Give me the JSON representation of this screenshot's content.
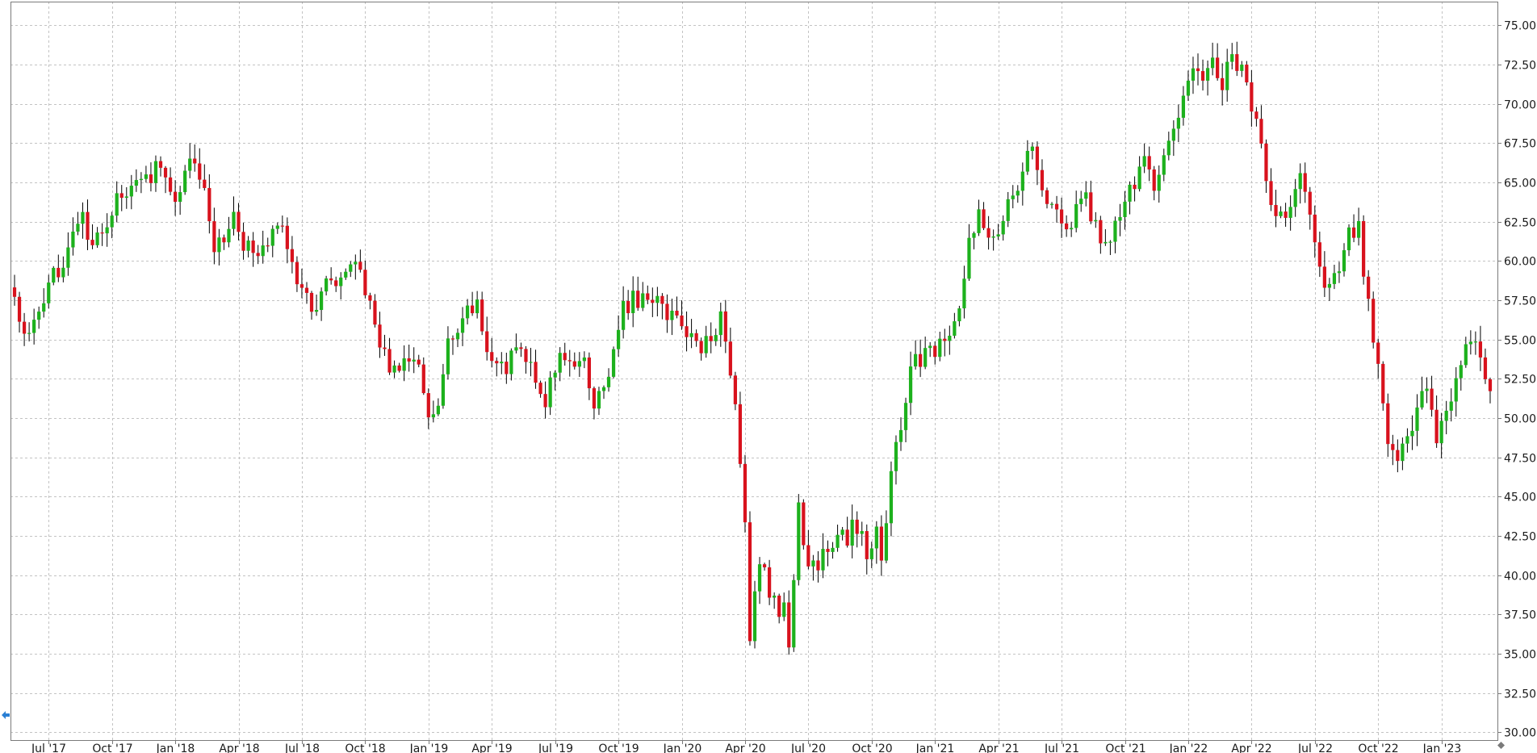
{
  "chart_data": {
    "type": "candlestick",
    "timeframe": "weekly",
    "colors": {
      "up": "#1db11d",
      "down": "#d8121d",
      "grid": "#c3c3c3",
      "wick": "#000000",
      "axis": "#7a7a7a"
    },
    "y_range": [
      29.5,
      76.5
    ],
    "y_ticks": [
      "30.00",
      "32.50",
      "35.00",
      "37.50",
      "40.00",
      "42.50",
      "45.00",
      "47.50",
      "50.00",
      "52.50",
      "55.00",
      "57.50",
      "60.00",
      "62.50",
      "65.00",
      "67.50",
      "70.00",
      "72.50",
      "75.00"
    ],
    "x_ticks": [
      {
        "label": "Jul '17",
        "week": 7
      },
      {
        "label": "Oct '17",
        "week": 20
      },
      {
        "label": "Jan '18",
        "week": 33
      },
      {
        "label": "Apr '18",
        "week": 46
      },
      {
        "label": "Jul '18",
        "week": 59
      },
      {
        "label": "Oct '18",
        "week": 72
      },
      {
        "label": "Jan '19",
        "week": 85
      },
      {
        "label": "Apr '19",
        "week": 98
      },
      {
        "label": "Jul '19",
        "week": 111
      },
      {
        "label": "Oct '19",
        "week": 124
      },
      {
        "label": "Jan '20",
        "week": 137
      },
      {
        "label": "Apr '20",
        "week": 150
      },
      {
        "label": "Jul '20",
        "week": 163
      },
      {
        "label": "Oct '20",
        "week": 176
      },
      {
        "label": "Jan '21",
        "week": 189
      },
      {
        "label": "Apr '21",
        "week": 202
      },
      {
        "label": "Jul '21",
        "week": 215
      },
      {
        "label": "Oct '21",
        "week": 228
      },
      {
        "label": "Jan '22",
        "week": 241
      },
      {
        "label": "Apr '22",
        "week": 254
      },
      {
        "label": "Jul '22",
        "week": 267
      },
      {
        "label": "Oct '22",
        "week": 280
      },
      {
        "label": "Jan '23",
        "week": 293
      }
    ],
    "close_path": [
      [
        0,
        57.5
      ],
      [
        2,
        55.5
      ],
      [
        4,
        55.8
      ],
      [
        6,
        57.0
      ],
      [
        8,
        59.0
      ],
      [
        10,
        60.2
      ],
      [
        12,
        62.0
      ],
      [
        14,
        62.5
      ],
      [
        16,
        60.5
      ],
      [
        18,
        62.0
      ],
      [
        20,
        63.0
      ],
      [
        22,
        64.5
      ],
      [
        24,
        64.5
      ],
      [
        26,
        64.8
      ],
      [
        28,
        65.5
      ],
      [
        30,
        66.5
      ],
      [
        32,
        64.0
      ],
      [
        34,
        64.5
      ],
      [
        35,
        66.2
      ],
      [
        37,
        66.3
      ],
      [
        39,
        65.2
      ],
      [
        41,
        61.0
      ],
      [
        43,
        61.5
      ],
      [
        45,
        63.0
      ],
      [
        47,
        61.0
      ],
      [
        49,
        61.0
      ],
      [
        51,
        60.5
      ],
      [
        53,
        61.5
      ],
      [
        55,
        62.5
      ],
      [
        57,
        59.5
      ],
      [
        59,
        58.0
      ],
      [
        61,
        57.0
      ],
      [
        63,
        58.0
      ],
      [
        65,
        59.0
      ],
      [
        67,
        58.5
      ],
      [
        69,
        60.2
      ],
      [
        71,
        59.8
      ],
      [
        73,
        57.0
      ],
      [
        75,
        54.5
      ],
      [
        77,
        53.5
      ],
      [
        79,
        53.5
      ],
      [
        81,
        53.0
      ],
      [
        83,
        53.8
      ],
      [
        85,
        50.0
      ],
      [
        87,
        50.5
      ],
      [
        89,
        54.5
      ],
      [
        91,
        55.0
      ],
      [
        93,
        56.8
      ],
      [
        95,
        57.0
      ],
      [
        97,
        54.5
      ],
      [
        99,
        53.5
      ],
      [
        101,
        53.0
      ],
      [
        103,
        54.5
      ],
      [
        105,
        54.0
      ],
      [
        107,
        52.8
      ],
      [
        109,
        51.2
      ],
      [
        111,
        53.0
      ],
      [
        113,
        54.2
      ],
      [
        115,
        53.5
      ],
      [
        117,
        53.2
      ],
      [
        119,
        51.0
      ],
      [
        121,
        52.0
      ],
      [
        123,
        54.0
      ],
      [
        125,
        57.0
      ],
      [
        127,
        57.5
      ],
      [
        129,
        57.5
      ],
      [
        131,
        57.8
      ],
      [
        133,
        57.2
      ],
      [
        135,
        56.3
      ],
      [
        137,
        56.0
      ],
      [
        139,
        55.0
      ],
      [
        141,
        54.5
      ],
      [
        143,
        55.5
      ],
      [
        145,
        56.3
      ],
      [
        146,
        55.5
      ],
      [
        147,
        53.0
      ],
      [
        148,
        50.3
      ],
      [
        149,
        46.5
      ],
      [
        150,
        43.0
      ],
      [
        151,
        36.0
      ],
      [
        152,
        39.0
      ],
      [
        153,
        40.5
      ],
      [
        154,
        41.0
      ],
      [
        155,
        38.0
      ],
      [
        156,
        38.5
      ],
      [
        157,
        37.5
      ],
      [
        158,
        37.8
      ],
      [
        159,
        35.5
      ],
      [
        160,
        40.0
      ],
      [
        161,
        44.0
      ],
      [
        162,
        42.0
      ],
      [
        163,
        41.0
      ],
      [
        164,
        41.5
      ],
      [
        165,
        40.5
      ],
      [
        166,
        41.5
      ],
      [
        167,
        41.5
      ],
      [
        168,
        41.2
      ],
      [
        169,
        42.0
      ],
      [
        170,
        43.5
      ],
      [
        171,
        42.2
      ],
      [
        172,
        43.5
      ],
      [
        173,
        42.0
      ],
      [
        174,
        42.5
      ],
      [
        175,
        41.0
      ],
      [
        176,
        42.0
      ],
      [
        177,
        43.0
      ],
      [
        178,
        41.5
      ],
      [
        179,
        43.5
      ],
      [
        180,
        46.0
      ],
      [
        181,
        48.0
      ],
      [
        182,
        49.5
      ],
      [
        183,
        51.0
      ],
      [
        184,
        53.0
      ],
      [
        185,
        54.0
      ],
      [
        186,
        53.5
      ],
      [
        188,
        54.2
      ],
      [
        190,
        54.5
      ],
      [
        192,
        55.5
      ],
      [
        194,
        57.0
      ],
      [
        196,
        61.0
      ],
      [
        198,
        63.0
      ],
      [
        200,
        62.0
      ],
      [
        202,
        62.0
      ],
      [
        204,
        64.0
      ],
      [
        206,
        65.0
      ],
      [
        208,
        67.5
      ],
      [
        210,
        66.0
      ],
      [
        212,
        64.0
      ],
      [
        214,
        63.5
      ],
      [
        216,
        61.5
      ],
      [
        218,
        63.0
      ],
      [
        220,
        64.0
      ],
      [
        222,
        62.0
      ],
      [
        224,
        61.0
      ],
      [
        226,
        62.5
      ],
      [
        228,
        63.5
      ],
      [
        230,
        65.0
      ],
      [
        232,
        66.5
      ],
      [
        234,
        65.0
      ],
      [
        236,
        66.5
      ],
      [
        238,
        68.0
      ],
      [
        240,
        70.0
      ],
      [
        242,
        72.5
      ],
      [
        244,
        72.0
      ],
      [
        246,
        73.0
      ],
      [
        248,
        71.5
      ],
      [
        250,
        73.0
      ],
      [
        252,
        72.0
      ],
      [
        254,
        70.0
      ],
      [
        256,
        67.0
      ],
      [
        258,
        63.5
      ],
      [
        260,
        62.5
      ],
      [
        262,
        63.0
      ],
      [
        264,
        66.0
      ],
      [
        266,
        62.5
      ],
      [
        268,
        59.0
      ],
      [
        270,
        58.0
      ],
      [
        272,
        59.5
      ],
      [
        274,
        61.5
      ],
      [
        276,
        62.0
      ],
      [
        278,
        57.0
      ],
      [
        280,
        53.0
      ],
      [
        282,
        48.5
      ],
      [
        284,
        47.5
      ],
      [
        286,
        48.5
      ],
      [
        288,
        51.0
      ],
      [
        290,
        52.0
      ],
      [
        292,
        48.5
      ],
      [
        294,
        50.0
      ],
      [
        296,
        53.0
      ],
      [
        298,
        54.5
      ],
      [
        300,
        55.0
      ],
      [
        302,
        53.0
      ],
      [
        303,
        51.5
      ]
    ]
  }
}
